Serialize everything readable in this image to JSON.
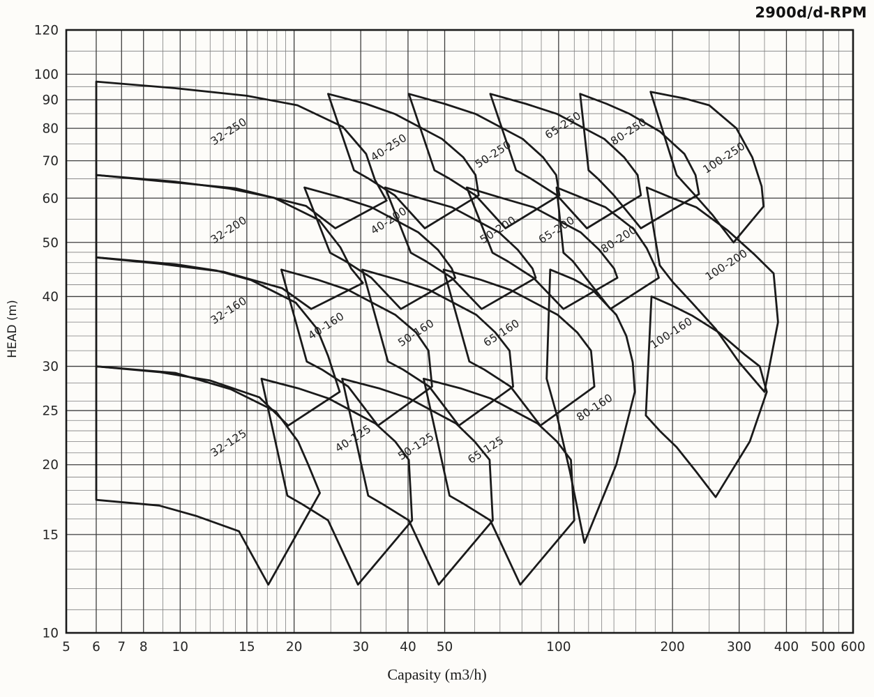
{
  "title": "2900d/d-RPM",
  "colors": {
    "ink": "#1a1a1a",
    "grid_major": "#3d3d3d",
    "grid_minor": "#7d7d7d",
    "paper": "#fdfcf9",
    "label": "#1f1f1f"
  },
  "chart_data": {
    "type": "area",
    "title": "2900d/d-RPM",
    "xlabel": "Capasity (m3/h)",
    "ylabel": "HEAD (m)",
    "x_axis": {
      "label": "Capasity (m3/h)",
      "scale": "log",
      "min": 5,
      "max": 600,
      "ticks": [
        5,
        6,
        7,
        8,
        10,
        15,
        20,
        30,
        40,
        50,
        100,
        200,
        300,
        400,
        500,
        600
      ]
    },
    "y_axis": {
      "label": "HEAD (m)",
      "scale": "log",
      "min": 10,
      "max": 120,
      "ticks": [
        10,
        15,
        20,
        25,
        30,
        40,
        50,
        60,
        70,
        80,
        90,
        100,
        120
      ]
    },
    "grid": true,
    "legend": "none",
    "envelopes": [
      {
        "label": "32-250",
        "label_pos": [
          13.6,
          78
        ],
        "label_angle": -33,
        "points": [
          [
            6,
            97
          ],
          [
            9.7,
            94.4
          ],
          [
            15,
            91.5
          ],
          [
            20.4,
            88
          ],
          [
            26.9,
            80.5
          ],
          [
            31,
            72
          ],
          [
            32.7,
            64.7
          ],
          [
            35.1,
            59.4
          ],
          [
            25.7,
            53
          ],
          [
            21.5,
            58.1
          ],
          [
            14,
            62.5
          ],
          [
            8.8,
            64.4
          ],
          [
            6,
            66
          ]
        ]
      },
      {
        "label": "40-250",
        "label_pos": [
          36,
          73
        ],
        "label_angle": -33,
        "points": [
          [
            24.6,
            92.2
          ],
          [
            31,
            88.5
          ],
          [
            36.9,
            84.9
          ],
          [
            49.2,
            76.6
          ],
          [
            56,
            71
          ],
          [
            60.3,
            66
          ],
          [
            61.5,
            60.7
          ],
          [
            44.3,
            53
          ],
          [
            36.9,
            60.7
          ],
          [
            31.5,
            65
          ],
          [
            28.8,
            67.3
          ]
        ]
      },
      {
        "label": "50-250",
        "label_pos": [
          68,
          71
        ],
        "label_angle": -33,
        "points": [
          [
            40.2,
            92.2
          ],
          [
            50,
            88.5
          ],
          [
            60.3,
            84.9
          ],
          [
            80.4,
            76.6
          ],
          [
            91,
            71
          ],
          [
            98.5,
            66
          ],
          [
            100.5,
            60.7
          ],
          [
            72.4,
            53
          ],
          [
            60.3,
            60.7
          ],
          [
            51.5,
            65
          ],
          [
            47,
            67.3
          ]
        ]
      },
      {
        "label": "65-250",
        "label_pos": [
          104,
          80
        ],
        "label_angle": -33,
        "points": [
          [
            66,
            92.2
          ],
          [
            82,
            88.5
          ],
          [
            99,
            84.9
          ],
          [
            132,
            76.6
          ],
          [
            149,
            71
          ],
          [
            161.7,
            66
          ],
          [
            165,
            60.7
          ],
          [
            118.8,
            53
          ],
          [
            99,
            60.7
          ],
          [
            84.5,
            65
          ],
          [
            77.2,
            67.3
          ]
        ]
      },
      {
        "label": "80-250",
        "label_pos": [
          155,
          78
        ],
        "label_angle": -33,
        "points": [
          [
            114,
            92.2
          ],
          [
            134,
            88.5
          ],
          [
            154,
            84.9
          ],
          [
            185,
            79
          ],
          [
            215,
            72
          ],
          [
            230,
            66
          ],
          [
            235,
            61
          ],
          [
            165,
            53
          ],
          [
            140,
            60.7
          ],
          [
            127,
            65
          ],
          [
            120,
            67.3
          ]
        ]
      },
      {
        "label": "100-250",
        "label_pos": [
          277,
          70
        ],
        "label_angle": -33,
        "points": [
          [
            175,
            93
          ],
          [
            215,
            90.5
          ],
          [
            250,
            88
          ],
          [
            295,
            80
          ],
          [
            325,
            71
          ],
          [
            344,
            63
          ],
          [
            348,
            58
          ],
          [
            290,
            50
          ],
          [
            255,
            56
          ],
          [
            228,
            61
          ],
          [
            205,
            66
          ]
        ]
      },
      {
        "label": "32-200",
        "label_pos": [
          13.6,
          52
        ],
        "label_angle": -33,
        "points": [
          [
            6,
            66
          ],
          [
            9.7,
            64.2
          ],
          [
            13.5,
            62.4
          ],
          [
            17.7,
            60.1
          ],
          [
            23.3,
            54.8
          ],
          [
            26.5,
            49
          ],
          [
            28.3,
            44.9
          ],
          [
            30.4,
            42.3
          ],
          [
            22.2,
            38
          ],
          [
            18.6,
            41.4
          ],
          [
            13,
            44.3
          ],
          [
            8.8,
            45.8
          ],
          [
            6,
            47
          ]
        ]
      },
      {
        "label": "40-200",
        "label_pos": [
          36,
          54
        ],
        "label_angle": -33,
        "points": [
          [
            21.3,
            62.7
          ],
          [
            27,
            60
          ],
          [
            32,
            57.8
          ],
          [
            42.6,
            52.1
          ],
          [
            48,
            48.5
          ],
          [
            52.2,
            44.9
          ],
          [
            53.3,
            43.2
          ],
          [
            38.3,
            38
          ],
          [
            32,
            43.2
          ],
          [
            27.3,
            46.3
          ],
          [
            24.9,
            47.9
          ]
        ]
      },
      {
        "label": "50-200",
        "label_pos": [
          70,
          52
        ],
        "label_angle": -33,
        "points": [
          [
            34.8,
            62.7
          ],
          [
            43,
            60
          ],
          [
            52.2,
            57.8
          ],
          [
            69.6,
            52.1
          ],
          [
            78,
            48.5
          ],
          [
            85.3,
            44.9
          ],
          [
            87,
            43.2
          ],
          [
            62.6,
            38
          ],
          [
            52.2,
            43.2
          ],
          [
            44.5,
            46.3
          ],
          [
            40.7,
            47.9
          ]
        ]
      },
      {
        "label": "65-200",
        "label_pos": [
          100,
          52
        ],
        "label_angle": -33,
        "points": [
          [
            57.2,
            62.7
          ],
          [
            71,
            60
          ],
          [
            85.8,
            57.8
          ],
          [
            114.4,
            52.1
          ],
          [
            128,
            48.5
          ],
          [
            140.1,
            44.9
          ],
          [
            143,
            43.2
          ],
          [
            103,
            38
          ],
          [
            85.8,
            43.2
          ],
          [
            73.2,
            46.3
          ],
          [
            66.9,
            47.9
          ]
        ]
      },
      {
        "label": "80-200",
        "label_pos": [
          146,
          50
        ],
        "label_angle": -33,
        "points": [
          [
            98.8,
            62.7
          ],
          [
            116,
            60
          ],
          [
            133,
            57.8
          ],
          [
            158,
            52.8
          ],
          [
            171,
            48.8
          ],
          [
            181,
            44.9
          ],
          [
            184,
            43.2
          ],
          [
            137,
            38
          ],
          [
            118,
            43.2
          ],
          [
            109,
            46.3
          ],
          [
            103,
            47.9
          ]
        ]
      },
      {
        "label": "100-200",
        "label_pos": [
          281,
          45
        ],
        "label_angle": -33,
        "points": [
          [
            171,
            62.7
          ],
          [
            200,
            60
          ],
          [
            231,
            57.8
          ],
          [
            280,
            52.5
          ],
          [
            330,
            47.5
          ],
          [
            370,
            44
          ],
          [
            380,
            36
          ],
          [
            350,
            27
          ],
          [
            300,
            30.5
          ],
          [
            260,
            35
          ],
          [
            225,
            39
          ],
          [
            200,
            42.5
          ],
          [
            185,
            45.5
          ]
        ]
      },
      {
        "label": "32-160",
        "label_pos": [
          13.6,
          37.3
        ],
        "label_angle": -33,
        "points": [
          [
            6,
            47
          ],
          [
            9.7,
            45.7
          ],
          [
            12.5,
            44.5
          ],
          [
            15.4,
            42.8
          ],
          [
            20.2,
            39
          ],
          [
            23,
            35
          ],
          [
            24.6,
            31.3
          ],
          [
            26.4,
            27
          ],
          [
            19.3,
            23.5
          ],
          [
            16.2,
            26.4
          ],
          [
            12,
            28.3
          ],
          [
            8.8,
            29.3
          ],
          [
            6,
            30
          ]
        ]
      },
      {
        "label": "40-160",
        "label_pos": [
          24.6,
          35
        ],
        "label_angle": -33,
        "points": [
          [
            18.5,
            44.7
          ],
          [
            23,
            42.9
          ],
          [
            27.8,
            41.1
          ],
          [
            37,
            37.1
          ],
          [
            42,
            34.5
          ],
          [
            45.3,
            32
          ],
          [
            46.3,
            27.6
          ],
          [
            33.3,
            23.5
          ],
          [
            27.8,
            27.6
          ],
          [
            23.7,
            29.6
          ],
          [
            21.6,
            30.6
          ]
        ]
      },
      {
        "label": "50-160",
        "label_pos": [
          42.5,
          34
        ],
        "label_angle": -33,
        "points": [
          [
            30.3,
            44.7
          ],
          [
            37.5,
            42.9
          ],
          [
            45.5,
            41.1
          ],
          [
            60.6,
            37.1
          ],
          [
            68,
            34.5
          ],
          [
            74.2,
            32
          ],
          [
            75.8,
            27.6
          ],
          [
            54.5,
            23.5
          ],
          [
            45.5,
            27.6
          ],
          [
            38.8,
            29.6
          ],
          [
            35.4,
            30.6
          ]
        ]
      },
      {
        "label": "65-160",
        "label_pos": [
          71.5,
          34
        ],
        "label_angle": -33,
        "points": [
          [
            49.7,
            44.7
          ],
          [
            62,
            42.9
          ],
          [
            74.6,
            41.1
          ],
          [
            99.4,
            37.1
          ],
          [
            112,
            34.5
          ],
          [
            121.8,
            32
          ],
          [
            124.3,
            27.6
          ],
          [
            89.5,
            23.5
          ],
          [
            74.6,
            27.6
          ],
          [
            63.6,
            29.6
          ],
          [
            58.1,
            30.6
          ]
        ]
      },
      {
        "label": "80-160",
        "label_pos": [
          126,
          25
        ],
        "label_angle": -33,
        "points": [
          [
            95,
            44.7
          ],
          [
            110,
            42.9
          ],
          [
            123,
            41.1
          ],
          [
            142,
            37.1
          ],
          [
            151,
            34
          ],
          [
            157,
            30.5
          ],
          [
            159,
            27
          ],
          [
            142,
            20
          ],
          [
            117,
            14.5
          ],
          [
            107,
            19.5
          ],
          [
            99,
            24.5
          ],
          [
            93,
            28.5
          ]
        ]
      },
      {
        "label": "100-160",
        "label_pos": [
          201,
          34
        ],
        "label_angle": -33,
        "points": [
          [
            176,
            40
          ],
          [
            200,
            38.5
          ],
          [
            225,
            37
          ],
          [
            265,
            34.5
          ],
          [
            310,
            31.5
          ],
          [
            340,
            30
          ],
          [
            355,
            27
          ],
          [
            320,
            22
          ],
          [
            260,
            17.5
          ],
          [
            230,
            19.5
          ],
          [
            205,
            21.5
          ],
          [
            185,
            23
          ],
          [
            170,
            24.5
          ]
        ]
      },
      {
        "label": "32-125",
        "label_pos": [
          13.6,
          21.6
        ],
        "label_angle": -33,
        "points": [
          [
            6,
            30
          ],
          [
            9.7,
            29.2
          ],
          [
            13.6,
            27.3
          ],
          [
            17.9,
            24.9
          ],
          [
            20.5,
            22
          ],
          [
            21.8,
            20
          ],
          [
            23.4,
            17.8
          ],
          [
            17.1,
            12.2
          ],
          [
            14.3,
            15.2
          ],
          [
            11,
            16.2
          ],
          [
            8.8,
            16.9
          ],
          [
            6,
            17.3
          ]
        ]
      },
      {
        "label": "40-125",
        "label_pos": [
          29,
          22
        ],
        "label_angle": -33,
        "points": [
          [
            16.4,
            28.5
          ],
          [
            20.5,
            27.4
          ],
          [
            24.6,
            26.3
          ],
          [
            32.8,
            23.7
          ],
          [
            37,
            22
          ],
          [
            40.2,
            20.4
          ],
          [
            41,
            15.9
          ],
          [
            29.5,
            12.2
          ],
          [
            24.6,
            15.9
          ],
          [
            21,
            17
          ],
          [
            19.2,
            17.6
          ]
        ]
      },
      {
        "label": "50-125",
        "label_pos": [
          42.5,
          21.3
        ],
        "label_angle": -33,
        "points": [
          [
            26.8,
            28.5
          ],
          [
            33.5,
            27.4
          ],
          [
            40.2,
            26.3
          ],
          [
            53.6,
            23.7
          ],
          [
            60,
            22
          ],
          [
            65.7,
            20.4
          ],
          [
            67,
            15.9
          ],
          [
            48.2,
            12.2
          ],
          [
            40.2,
            15.9
          ],
          [
            34.3,
            17
          ],
          [
            31.4,
            17.6
          ]
        ]
      },
      {
        "label": "65-125",
        "label_pos": [
          65,
          21
        ],
        "label_angle": -33,
        "points": [
          [
            44,
            28.5
          ],
          [
            55,
            27.4
          ],
          [
            66,
            26.3
          ],
          [
            88,
            23.7
          ],
          [
            99,
            22
          ],
          [
            107.8,
            20.4
          ],
          [
            110,
            15.9
          ],
          [
            79.2,
            12.2
          ],
          [
            66,
            15.9
          ],
          [
            56.3,
            17
          ],
          [
            51.5,
            17.6
          ]
        ]
      }
    ]
  }
}
